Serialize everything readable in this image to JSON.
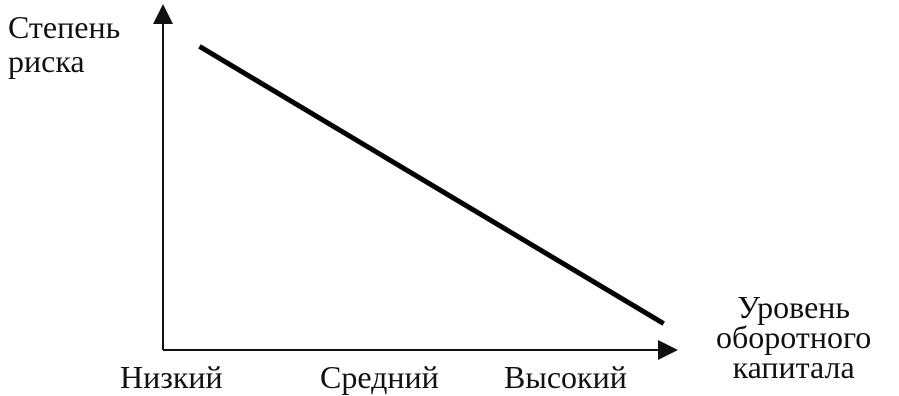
{
  "chart_data": {
    "type": "line",
    "ylabel_lines": [
      "Степень",
      "риска"
    ],
    "xlabel_lines": [
      "Уровень",
      "оборотного",
      "капитала"
    ],
    "categories": [
      "Низкий",
      "Средний",
      "Высокий"
    ],
    "series": [
      {
        "x": [
          0.18,
          2.47
        ],
        "y": [
          0.92,
          0.08
        ]
      }
    ],
    "xlim": [
      0,
      2.6
    ],
    "ylim": [
      0,
      1
    ],
    "line_color": "#000000"
  }
}
